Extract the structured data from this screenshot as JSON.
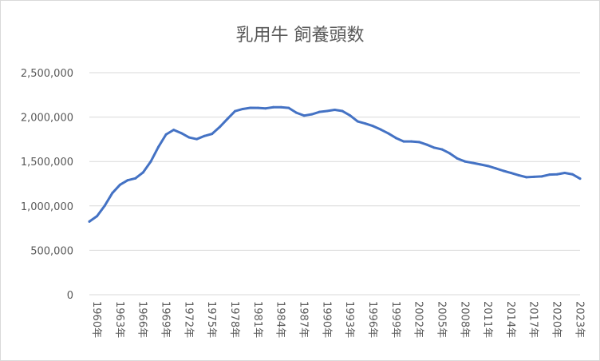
{
  "chart_data": {
    "type": "line",
    "title": "乳用牛 飼養頭数",
    "xlabel": "",
    "ylabel": "",
    "ylim": [
      0,
      2500000
    ],
    "y_ticks": [
      0,
      500000,
      1000000,
      1500000,
      2000000,
      2500000
    ],
    "y_tick_labels": [
      "0",
      "500,000",
      "1,000,000",
      "1,500,000",
      "2,000,000",
      "2,500,000"
    ],
    "x_tick_labels": [
      "1960年",
      "1963年",
      "1966年",
      "1969年",
      "1972年",
      "1975年",
      "1978年",
      "1981年",
      "1984年",
      "1987年",
      "1990年",
      "1993年",
      "1996年",
      "1999年",
      "2002年",
      "2005年",
      "2008年",
      "2011年",
      "2014年",
      "2017年",
      "2020年",
      "2023年"
    ],
    "grid": true,
    "legend": "none",
    "line_color": "#4472c4",
    "x": [
      1960,
      1961,
      1962,
      1963,
      1964,
      1965,
      1966,
      1967,
      1968,
      1969,
      1970,
      1971,
      1972,
      1973,
      1974,
      1975,
      1976,
      1977,
      1978,
      1979,
      1980,
      1981,
      1982,
      1983,
      1984,
      1985,
      1986,
      1987,
      1988,
      1989,
      1990,
      1991,
      1992,
      1993,
      1994,
      1995,
      1996,
      1997,
      1998,
      1999,
      2000,
      2001,
      2002,
      2003,
      2004,
      2005,
      2006,
      2007,
      2008,
      2009,
      2010,
      2011,
      2012,
      2013,
      2014,
      2015,
      2016,
      2017,
      2018,
      2019,
      2020,
      2021,
      2022,
      2023,
      2024
    ],
    "values": [
      824000,
      885000,
      1002000,
      1145000,
      1238000,
      1289000,
      1310000,
      1376000,
      1498000,
      1663000,
      1804000,
      1856000,
      1819000,
      1771000,
      1752000,
      1787000,
      1811000,
      1888000,
      1979000,
      2067000,
      2091000,
      2104000,
      2103000,
      2098000,
      2111000,
      2111000,
      2103000,
      2049000,
      2017000,
      2031000,
      2058000,
      2068000,
      2082000,
      2068000,
      2018000,
      1951000,
      1927000,
      1899000,
      1860000,
      1816000,
      1764000,
      1726000,
      1726000,
      1719000,
      1690000,
      1655000,
      1636000,
      1592000,
      1533000,
      1500000,
      1484000,
      1467000,
      1449000,
      1423000,
      1395000,
      1371000,
      1345000,
      1323000,
      1328000,
      1332000,
      1352000,
      1356000,
      1371000,
      1356000,
      1307000
    ]
  }
}
